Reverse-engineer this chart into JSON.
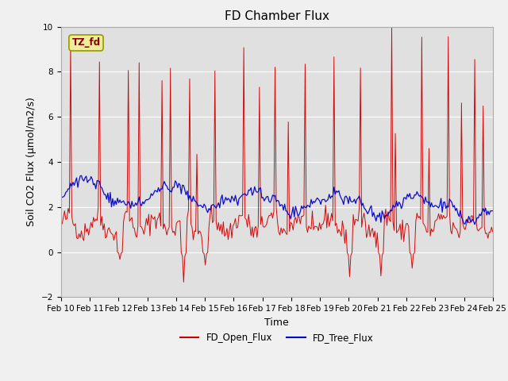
{
  "title": "FD Chamber Flux",
  "xlabel": "Time",
  "ylabel": "Soil CO2 Flux (μmol/m2/s)",
  "ylim": [
    -2,
    10
  ],
  "xlim": [
    0,
    360
  ],
  "x_tick_labels": [
    "Feb 10",
    "Feb 11",
    "Feb 12",
    "Feb 13",
    "Feb 14",
    "Feb 15",
    "Feb 16",
    "Feb 17",
    "Feb 18",
    "Feb 19",
    "Feb 20",
    "Feb 21",
    "Feb 22",
    "Feb 23",
    "Feb 24",
    "Feb 25"
  ],
  "annotation_text": "TZ_fd",
  "annotation_bg": "#eeee99",
  "annotation_border": "#999900",
  "red_color": "#cc0000",
  "blue_color": "#0000cc",
  "legend_labels": [
    "FD_Open_Flux",
    "FD_Tree_Flux"
  ],
  "fig_bg_color": "#f0f0f0",
  "plot_bg_color": "#e0e0e0",
  "grid_color": "#ffffff",
  "title_fontsize": 11,
  "label_fontsize": 9,
  "tick_fontsize": 7.5,
  "n_points": 360,
  "seed": 42
}
